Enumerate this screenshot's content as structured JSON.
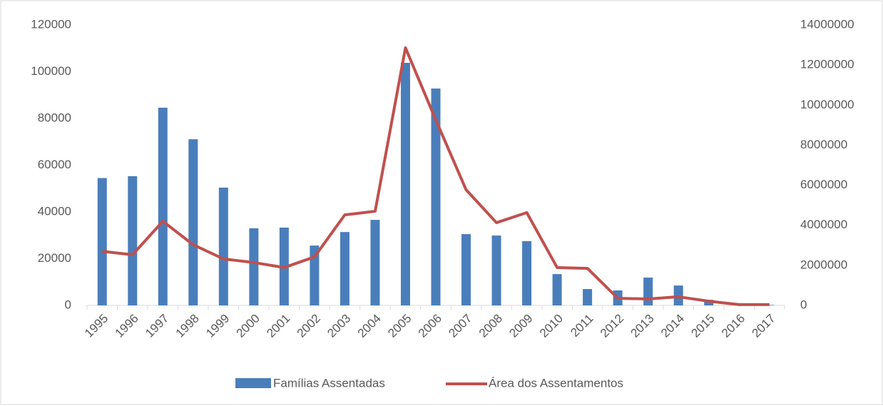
{
  "chart_data": {
    "type": "bar_line",
    "categories": [
      "1995",
      "1996",
      "1997",
      "1998",
      "1999",
      "2000",
      "2001",
      "2002",
      "2003",
      "2004",
      "2005",
      "2006",
      "2007",
      "2008",
      "2009",
      "2010",
      "2011",
      "2012",
      "2013",
      "2014",
      "2015",
      "2016",
      "2017"
    ],
    "series": [
      {
        "name": "Famílias Assentadas",
        "type": "bar",
        "color": "#4a7ebb",
        "values": [
          54500,
          55300,
          84600,
          71100,
          50400,
          33000,
          33300,
          25600,
          31400,
          36600,
          103800,
          92800,
          30500,
          29900,
          27500,
          13400,
          7000,
          6400,
          11900,
          8500,
          2400,
          300,
          200
        ]
      },
      {
        "name": "Área dos Assentamentos",
        "type": "line",
        "axis": "y2",
        "color": "#c0504d",
        "values": [
          2700000,
          2530000,
          4200000,
          3030000,
          2320000,
          2140000,
          1890000,
          2420000,
          4520000,
          4700000,
          12860000,
          9260000,
          5770000,
          4130000,
          4630000,
          1890000,
          1850000,
          356000,
          320000,
          430000,
          210000,
          40000,
          40000
        ]
      }
    ],
    "ylim": [
      0,
      120000
    ],
    "yticks": [
      0,
      20000,
      40000,
      60000,
      80000,
      100000,
      120000
    ],
    "y2lim": [
      0,
      14000000
    ],
    "y2ticks": [
      0,
      2000000,
      4000000,
      6000000,
      8000000,
      10000000,
      12000000,
      14000000
    ],
    "legend": "bottom"
  }
}
